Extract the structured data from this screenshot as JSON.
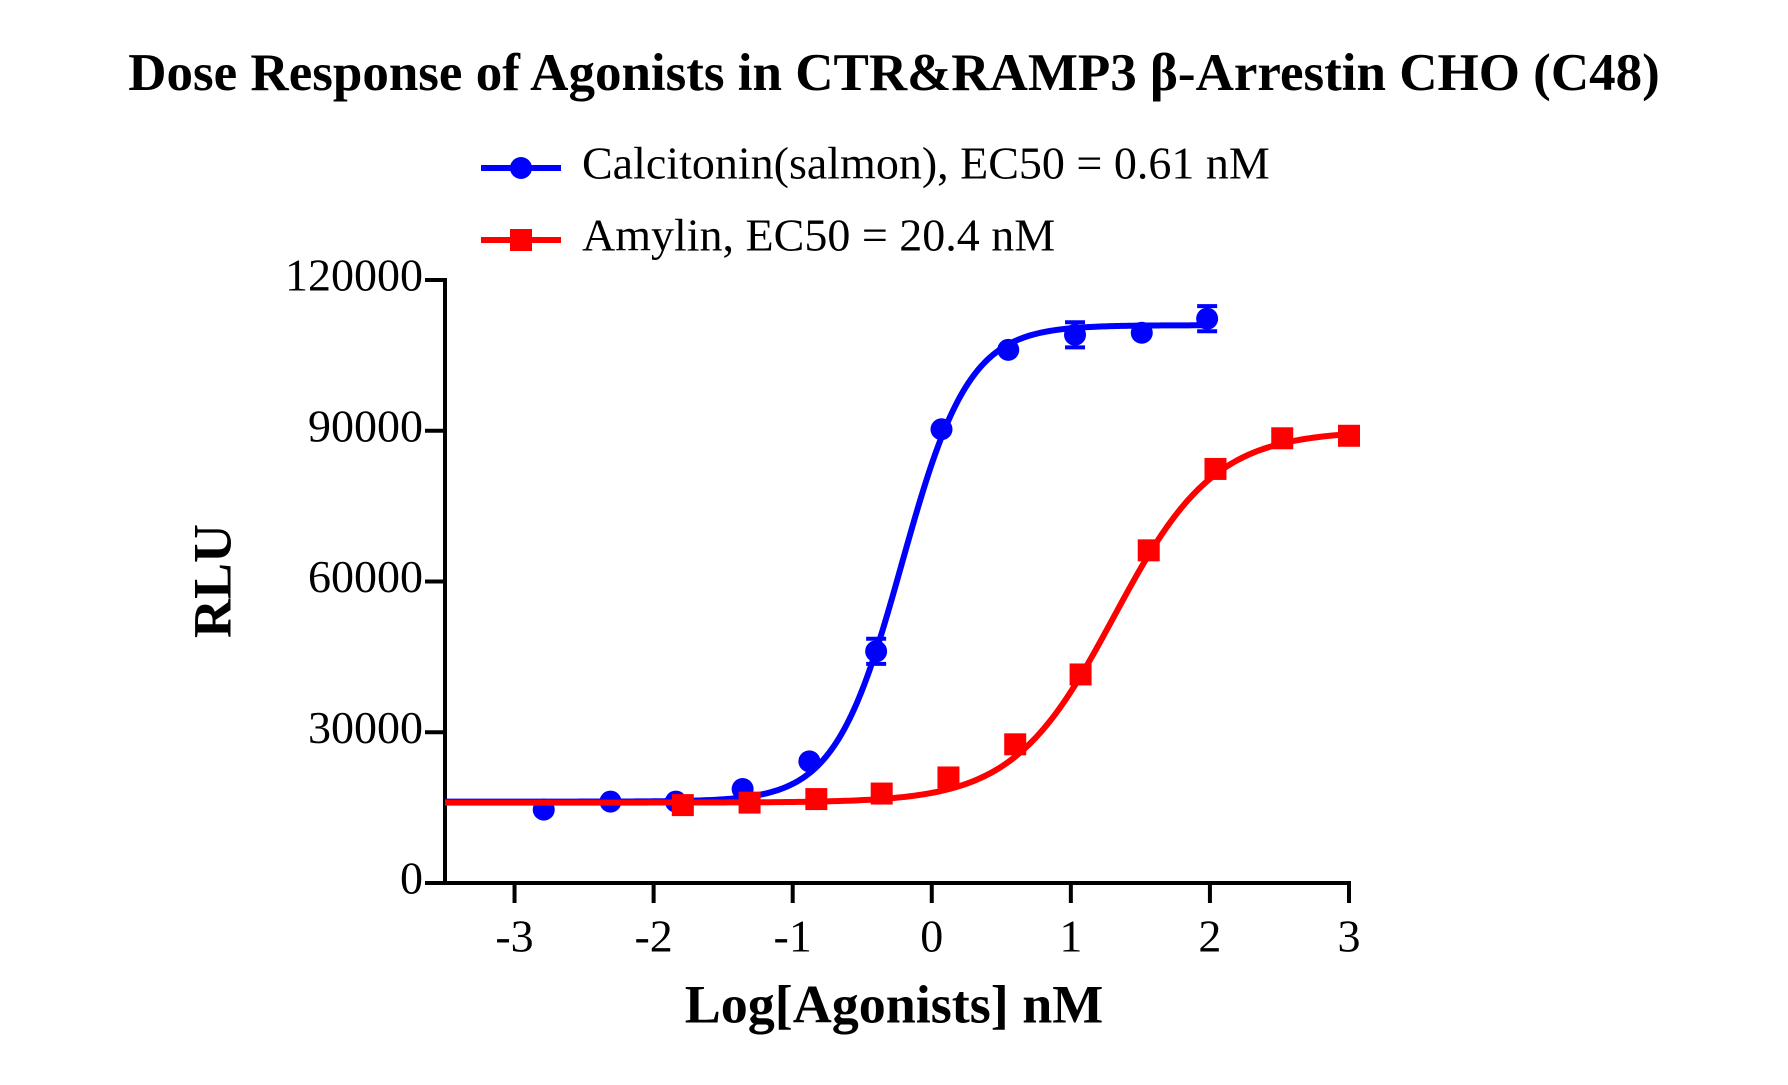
{
  "chart_data": {
    "type": "scatter",
    "title": "Dose Response of Agonists in CTR&RAMP3 β-Arrestin CHO (C48)",
    "x_label": "Log[Agonists] nM",
    "y_label": "RLU",
    "xlim": [
      -3.5,
      3
    ],
    "xticks": [
      -3,
      -2,
      -1,
      0,
      1,
      2,
      3
    ],
    "ylim": [
      0,
      120000
    ],
    "yticks": [
      0,
      30000,
      60000,
      90000,
      120000
    ],
    "series": [
      {
        "name": "Calcitonin(salmon), EC50 = 0.61 nM",
        "color": "#0000ff",
        "marker": "circle",
        "x": [
          -2.79,
          -2.31,
          -1.84,
          -1.36,
          -0.88,
          -0.4,
          0.07,
          0.55,
          1.03,
          1.51,
          1.98
        ],
        "values": [
          14600,
          16200,
          16200,
          18700,
          24200,
          46100,
          90300,
          106100,
          109100,
          109500,
          112300
        ],
        "errors": [
          null,
          null,
          null,
          null,
          null,
          2500,
          null,
          null,
          2500,
          null,
          2500
        ],
        "fit": {
          "bottom": 16200,
          "top": 111000,
          "ec50": 0.61,
          "hill": 1.8
        }
      },
      {
        "name": "Amylin, EC50 = 20.4 nM",
        "color": "#ff0000",
        "marker": "square",
        "x": [
          -1.79,
          -1.31,
          -0.83,
          -0.36,
          0.12,
          0.6,
          1.07,
          1.56,
          2.04,
          2.52,
          3.0
        ],
        "values": [
          15500,
          16000,
          16700,
          17800,
          21000,
          27600,
          41500,
          66200,
          82400,
          88500,
          89000
        ],
        "errors": [
          null,
          null,
          null,
          null,
          null,
          null,
          null,
          null,
          null,
          null,
          null
        ],
        "fit": {
          "bottom": 16000,
          "top": 90000,
          "ec50": 20.4,
          "hill": 1.2
        }
      }
    ]
  }
}
